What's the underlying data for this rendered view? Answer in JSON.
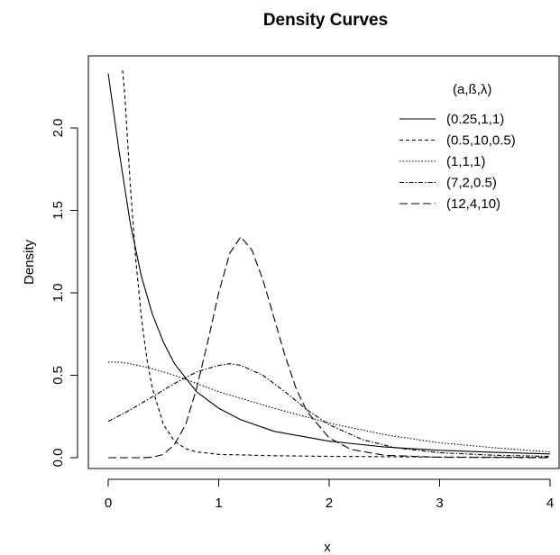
{
  "chart_data": {
    "type": "line",
    "title": "Density Curves",
    "xlabel": "x",
    "ylabel": "Density",
    "xlim": [
      0,
      4
    ],
    "ylim": [
      0,
      2.35
    ],
    "x_ticks": [
      "0",
      "1",
      "2",
      "3",
      "4"
    ],
    "y_ticks": [
      "0.0",
      "0.5",
      "1.0",
      "1.5",
      "2.0"
    ],
    "grid": false,
    "legend_position": "top-right",
    "legend_title": "(a,ß,λ)",
    "series": [
      {
        "name": "(0.25,1,1)",
        "dash": "solid",
        "x": [
          0,
          0.1,
          0.2,
          0.3,
          0.4,
          0.5,
          0.6,
          0.8,
          1.0,
          1.2,
          1.5,
          2.0,
          2.5,
          3.0,
          3.5,
          4.0
        ],
        "y": [
          2.33,
          1.85,
          1.42,
          1.1,
          0.87,
          0.7,
          0.57,
          0.4,
          0.3,
          0.23,
          0.16,
          0.1,
          0.065,
          0.045,
          0.032,
          0.023
        ]
      },
      {
        "name": "(0.5,10,0.5)",
        "dash": "4,3",
        "x": [
          0.13,
          0.15,
          0.2,
          0.25,
          0.3,
          0.35,
          0.4,
          0.5,
          0.6,
          0.7,
          0.8,
          1.0,
          1.5,
          2.0,
          3.0,
          4.0
        ],
        "y": [
          2.35,
          2.2,
          1.65,
          1.2,
          0.85,
          0.6,
          0.42,
          0.2,
          0.1,
          0.055,
          0.035,
          0.02,
          0.012,
          0.008,
          0.004,
          0.002
        ]
      },
      {
        "name": "(1,1,1)",
        "dash": "1.5,2",
        "x": [
          0,
          0.1,
          0.2,
          0.4,
          0.6,
          0.8,
          1.0,
          1.5,
          2.0,
          2.5,
          3.0,
          3.5,
          4.0
        ],
        "y": [
          0.58,
          0.58,
          0.57,
          0.54,
          0.5,
          0.45,
          0.4,
          0.3,
          0.21,
          0.14,
          0.09,
          0.06,
          0.035
        ]
      },
      {
        "name": "(7,2,0.5)",
        "dash": "5,2,1.5,2",
        "x": [
          0,
          0.2,
          0.4,
          0.6,
          0.8,
          1.0,
          1.1,
          1.2,
          1.4,
          1.6,
          1.8,
          2.0,
          2.3,
          2.6,
          3.0,
          3.5,
          4.0
        ],
        "y": [
          0.22,
          0.29,
          0.37,
          0.45,
          0.52,
          0.56,
          0.57,
          0.56,
          0.5,
          0.4,
          0.29,
          0.2,
          0.11,
          0.06,
          0.03,
          0.015,
          0.008
        ]
      },
      {
        "name": "(12,4,10)",
        "dash": "9,4",
        "x": [
          0,
          0.3,
          0.4,
          0.5,
          0.6,
          0.7,
          0.8,
          0.9,
          1.0,
          1.1,
          1.2,
          1.3,
          1.4,
          1.5,
          1.6,
          1.7,
          1.8,
          2.0,
          2.2,
          2.5,
          3.0,
          4.0
        ],
        "y": [
          0,
          0,
          0.003,
          0.02,
          0.08,
          0.2,
          0.42,
          0.7,
          1.0,
          1.24,
          1.34,
          1.26,
          1.08,
          0.85,
          0.62,
          0.42,
          0.28,
          0.12,
          0.05,
          0.015,
          0.003,
          0
        ]
      }
    ]
  }
}
